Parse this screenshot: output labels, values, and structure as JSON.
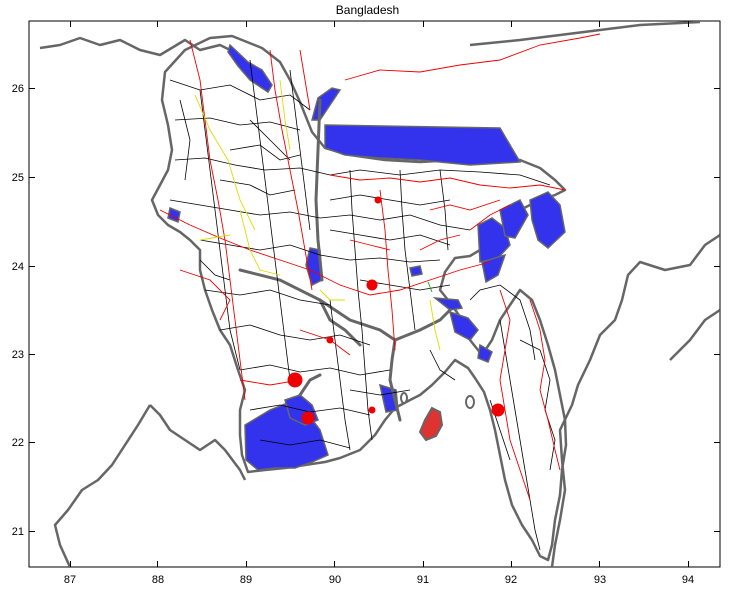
{
  "title": "Bangladesh",
  "colors": {
    "coastline": "#666666",
    "water": "#3333ee",
    "roads": "#000000",
    "railways": "#ee0000",
    "admin_boundary": "#dddd00",
    "frame": "#000000"
  },
  "axes": {
    "x_ticks": [
      "87",
      "88",
      "89",
      "90",
      "91",
      "92",
      "93",
      "94"
    ],
    "y_ticks": [
      "26",
      "25",
      "24",
      "23",
      "22",
      "21"
    ],
    "x_range": [
      86.5,
      94.3
    ],
    "y_range": [
      20.6,
      26.7
    ]
  }
}
